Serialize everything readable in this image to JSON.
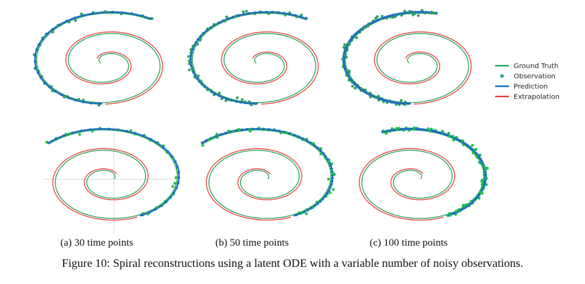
{
  "figure": {
    "caption": "Figure 10: Spiral reconstructions using a latent ODE with a variable number of noisy observations.",
    "subcaptions": [
      "(a) 30 time points",
      "(b) 50 time points",
      "(c) 100 time points"
    ]
  },
  "legend": {
    "placement": "right",
    "entries": [
      {
        "label": "Ground Truth",
        "color": "#2ca25f",
        "kind": "line"
      },
      {
        "label": "Observation",
        "color": "#2ca25f",
        "kind": "dot"
      },
      {
        "label": "Prediction",
        "color": "#1f6fbf",
        "kind": "line"
      },
      {
        "label": "Extrapolation",
        "color": "#e8413c",
        "kind": "line"
      }
    ]
  },
  "colors": {
    "ground_truth": "#2ca25f",
    "observation": "#2ca25f",
    "observation_alt": "#19c24a",
    "prediction": "#1f6fbf",
    "extrapolation": "#e8413c"
  },
  "chart_data": [
    {
      "type": "scatter",
      "panel": "(a) 30 time points",
      "row": "top",
      "direction": "clockwise",
      "n_observations": 30,
      "series": [
        {
          "name": "Ground Truth"
        },
        {
          "name": "Observation"
        },
        {
          "name": "Prediction"
        },
        {
          "name": "Extrapolation"
        }
      ]
    },
    {
      "type": "scatter",
      "panel": "(b) 50 time points",
      "row": "top",
      "direction": "clockwise",
      "n_observations": 50,
      "series": [
        {
          "name": "Ground Truth"
        },
        {
          "name": "Observation"
        },
        {
          "name": "Prediction"
        },
        {
          "name": "Extrapolation"
        }
      ]
    },
    {
      "type": "scatter",
      "panel": "(c) 100 time points",
      "row": "top",
      "direction": "clockwise",
      "n_observations": 100,
      "series": [
        {
          "name": "Ground Truth"
        },
        {
          "name": "Observation"
        },
        {
          "name": "Prediction"
        },
        {
          "name": "Extrapolation"
        }
      ]
    },
    {
      "type": "scatter",
      "panel": "(a) 30 time points",
      "row": "bottom",
      "direction": "counterclockwise",
      "n_observations": 30,
      "series": [
        {
          "name": "Ground Truth"
        },
        {
          "name": "Observation"
        },
        {
          "name": "Prediction"
        },
        {
          "name": "Extrapolation"
        }
      ]
    },
    {
      "type": "scatter",
      "panel": "(b) 50 time points",
      "row": "bottom",
      "direction": "counterclockwise",
      "n_observations": 50,
      "series": [
        {
          "name": "Ground Truth"
        },
        {
          "name": "Observation"
        },
        {
          "name": "Prediction"
        },
        {
          "name": "Extrapolation"
        }
      ]
    },
    {
      "type": "scatter",
      "panel": "(c) 100 time points",
      "row": "bottom",
      "direction": "counterclockwise",
      "n_observations": 100,
      "series": [
        {
          "name": "Ground Truth"
        },
        {
          "name": "Observation"
        },
        {
          "name": "Prediction"
        },
        {
          "name": "Extrapolation"
        }
      ]
    }
  ]
}
